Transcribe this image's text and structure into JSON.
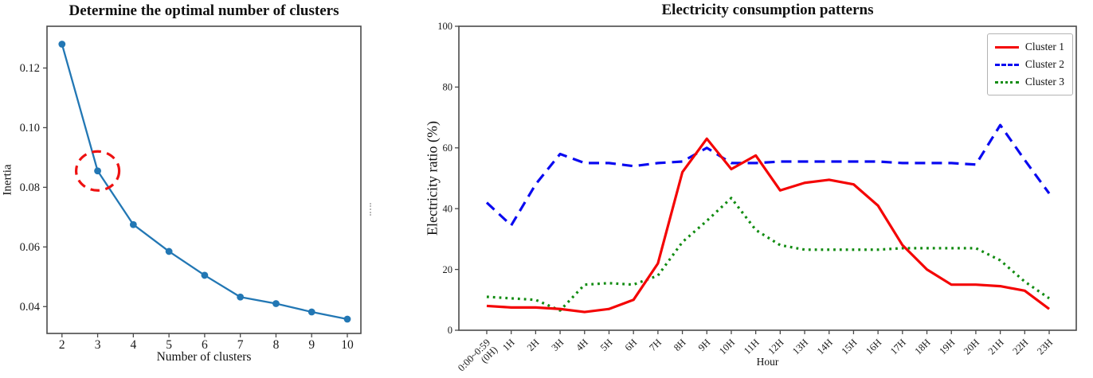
{
  "figure": {
    "background": "#ffffff"
  },
  "chart_data": [
    {
      "id": "elbow-plot",
      "type": "line",
      "title": "Determine the optimal number of clusters",
      "xlabel": "Number of clusters",
      "ylabel": "Inertia",
      "x": [
        2,
        3,
        4,
        5,
        6,
        7,
        8,
        9,
        10
      ],
      "values": [
        0.128,
        0.0855,
        0.0675,
        0.0585,
        0.0505,
        0.0432,
        0.041,
        0.0382,
        0.0358
      ],
      "xtick_labels": [
        "2",
        "3",
        "4",
        "5",
        "6",
        "7",
        "8",
        "9",
        "10"
      ],
      "yticks": [
        0.04,
        0.06,
        0.08,
        0.1,
        0.12
      ],
      "ytick_labels": [
        "0.04",
        "0.06",
        "0.08",
        "0.10",
        "0.12"
      ],
      "xlim": [
        1.58,
        10.38
      ],
      "ylim": [
        0.031,
        0.134
      ],
      "grid": false,
      "line_color": "#2277b4",
      "marker": "circle",
      "annotation": {
        "type": "dashed-circle",
        "x": 3,
        "y": 0.0855,
        "color": "#ee1111",
        "meaning": "elbow point at k=3"
      }
    },
    {
      "id": "electricity-consumption",
      "type": "line",
      "title": "Electricity consumption patterns",
      "xlabel": "Hour",
      "ylabel": "Electricity ratio (%)",
      "categories": [
        "0:00~0:59\n(0H)",
        "1H",
        "2H",
        "3H",
        "4H",
        "5H",
        "6H",
        "7H",
        "8H",
        "9H",
        "10H",
        "11H",
        "12H",
        "13H",
        "14H",
        "15H",
        "16H",
        "17H",
        "18H",
        "19H",
        "20H",
        "21H",
        "22H",
        "23H"
      ],
      "yticks": [
        0,
        20,
        40,
        60,
        80,
        100
      ],
      "ytick_labels": [
        "0",
        "20",
        "40",
        "60",
        "80",
        "100"
      ],
      "ylim": [
        0,
        100
      ],
      "grid": false,
      "legend_position": "upper right",
      "series": [
        {
          "name": "Cluster 1",
          "color": "#f40404",
          "style": "solid",
          "values": [
            8,
            7.5,
            7.5,
            7,
            6,
            7,
            10,
            22,
            52,
            63,
            53,
            57.5,
            46,
            48.5,
            49.5,
            48,
            41,
            28,
            20,
            15,
            15,
            14.5,
            13,
            7
          ]
        },
        {
          "name": "Cluster 2",
          "color": "#0a0af0",
          "style": "dashed",
          "values": [
            42,
            34.5,
            48,
            58,
            55,
            55,
            54,
            55,
            55.5,
            60,
            55,
            55,
            55.5,
            55.5,
            55.5,
            55.5,
            55.5,
            55,
            55,
            55,
            54.5,
            67.5,
            56,
            45
          ]
        },
        {
          "name": "Cluster 3",
          "color": "#128c12",
          "style": "dotted",
          "values": [
            11,
            10.5,
            10,
            6.5,
            15,
            15.5,
            15,
            18,
            29,
            36,
            43.5,
            33,
            28,
            26.5,
            26.5,
            26.5,
            26.5,
            27,
            27,
            27,
            27,
            23,
            16,
            10.5
          ]
        }
      ]
    }
  ]
}
